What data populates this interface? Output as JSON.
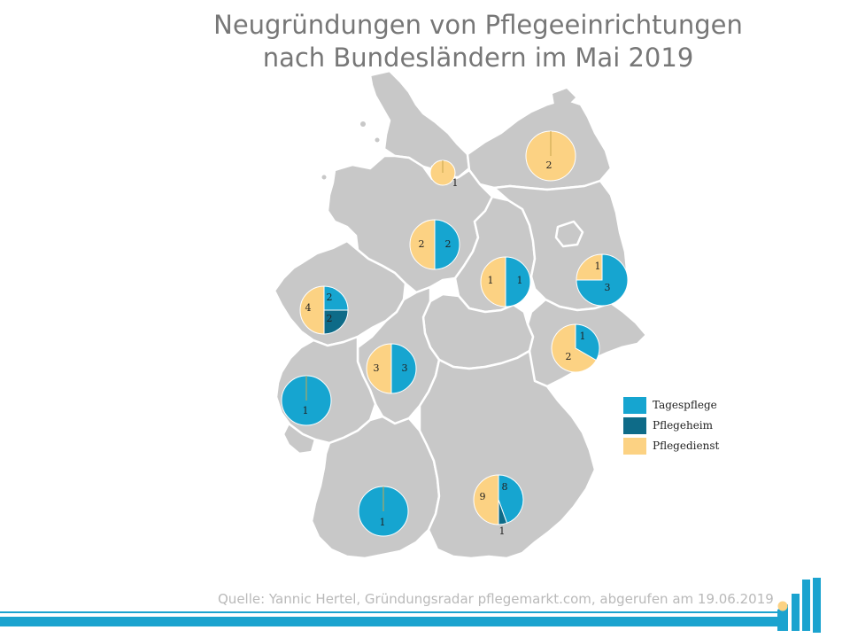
{
  "title": {
    "line1": "Neugründungen von Pflegeeinrichtungen",
    "line2": "nach Bundesländern im Mai 2019"
  },
  "source": "Quelle: Yannic Hertel, Gründungsradar pflegemarkt.com, abgerufen am 19.06.2019",
  "legend": [
    {
      "label": "Tagespflege",
      "color": "#16a5d0"
    },
    {
      "label": "Pflegeheim",
      "color": "#0e6b88"
    },
    {
      "label": "Pflegedienst",
      "color": "#fcd283"
    }
  ],
  "colors": {
    "map_fill": "#c8c8c8",
    "map_border": "#ffffff",
    "accent": "#1ba3cf",
    "logo_dot": "#fcd283"
  },
  "chart_data": {
    "type": "pie",
    "categories": [
      "Tagespflege",
      "Pflegeheim",
      "Pflegedienst"
    ],
    "pies": [
      {
        "region": "Schleswig-Holstein / Hamburg",
        "values": {
          "Tagespflege": 0,
          "Pflegeheim": 0,
          "Pflegedienst": 1
        },
        "labels": [
          "1"
        ]
      },
      {
        "region": "Mecklenburg-Vorpommern",
        "values": {
          "Tagespflege": 0,
          "Pflegeheim": 0,
          "Pflegedienst": 2
        },
        "labels": [
          "2"
        ]
      },
      {
        "region": "Niedersachsen",
        "values": {
          "Tagespflege": 2,
          "Pflegeheim": 0,
          "Pflegedienst": 2
        },
        "labels": [
          "2",
          "2"
        ]
      },
      {
        "region": "Sachsen-Anhalt",
        "values": {
          "Tagespflege": 1,
          "Pflegeheim": 0,
          "Pflegedienst": 1
        },
        "labels": [
          "1",
          "1"
        ]
      },
      {
        "region": "Brandenburg",
        "values": {
          "Tagespflege": 3,
          "Pflegeheim": 0,
          "Pflegedienst": 1
        },
        "labels": [
          "3",
          "1"
        ]
      },
      {
        "region": "Nordrhein-Westfalen",
        "values": {
          "Tagespflege": 2,
          "Pflegeheim": 2,
          "Pflegedienst": 4
        },
        "labels": [
          "2",
          "2",
          "4"
        ]
      },
      {
        "region": "Sachsen",
        "values": {
          "Tagespflege": 1,
          "Pflegeheim": 0,
          "Pflegedienst": 2
        },
        "labels": [
          "1",
          "2"
        ]
      },
      {
        "region": "Hessen",
        "values": {
          "Tagespflege": 3,
          "Pflegeheim": 0,
          "Pflegedienst": 3
        },
        "labels": [
          "3",
          "3"
        ]
      },
      {
        "region": "Rheinland-Pfalz",
        "values": {
          "Tagespflege": 1,
          "Pflegeheim": 0,
          "Pflegedienst": 0
        },
        "labels": [
          "1"
        ]
      },
      {
        "region": "Baden-Württemberg",
        "values": {
          "Tagespflege": 1,
          "Pflegeheim": 0,
          "Pflegedienst": 0
        },
        "labels": [
          "1"
        ]
      },
      {
        "region": "Bayern",
        "values": {
          "Tagespflege": 8,
          "Pflegeheim": 1,
          "Pflegedienst": 9
        },
        "labels": [
          "8",
          "1",
          "9"
        ]
      }
    ]
  }
}
